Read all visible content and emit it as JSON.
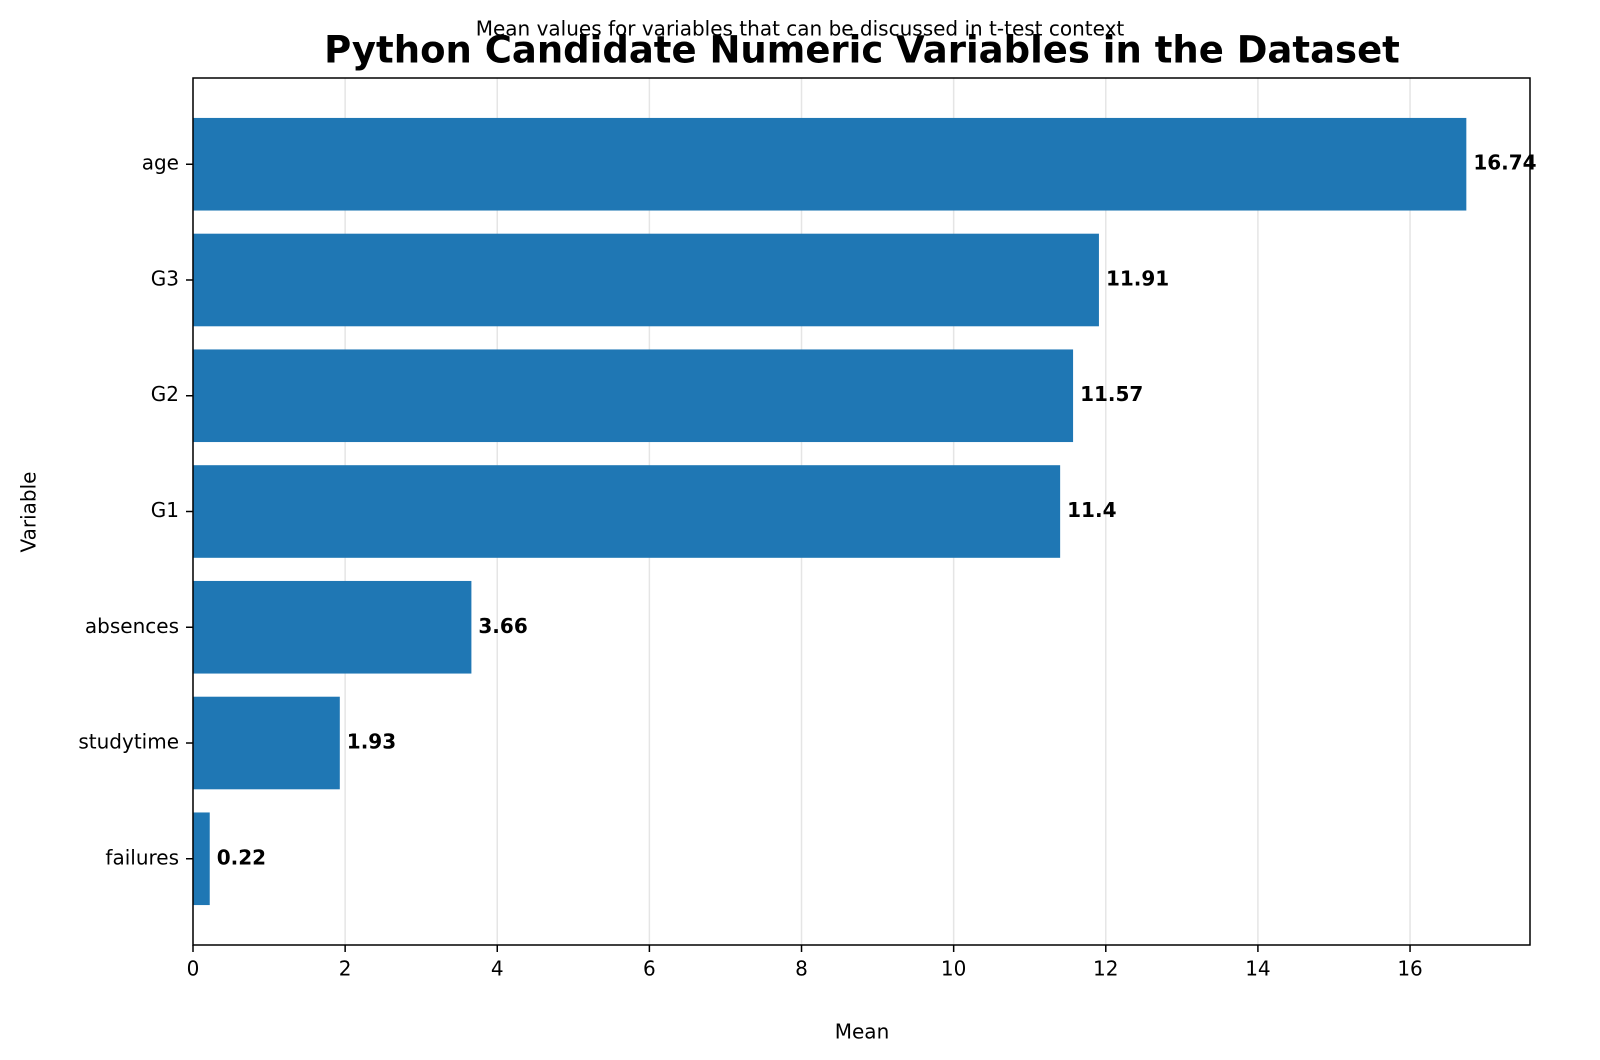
{
  "chart_data": {
    "type": "barh",
    "title": "Python Candidate Numeric Variables in the Dataset",
    "subtitle": "Mean values for variables that can be discussed in t-test context",
    "x_label": "Mean",
    "y_label": "Variable",
    "categories": [
      "age",
      "G3",
      "G2",
      "G1",
      "absences",
      "studytime",
      "failures"
    ],
    "values": [
      16.74,
      11.91,
      11.57,
      11.4,
      3.66,
      1.93,
      0.22
    ],
    "color": "#1f77b4",
    "xlim": [
      0,
      17.577
    ],
    "xticks": [
      0,
      2,
      4,
      6,
      8,
      10,
      12,
      14,
      16
    ],
    "grid": true
  }
}
